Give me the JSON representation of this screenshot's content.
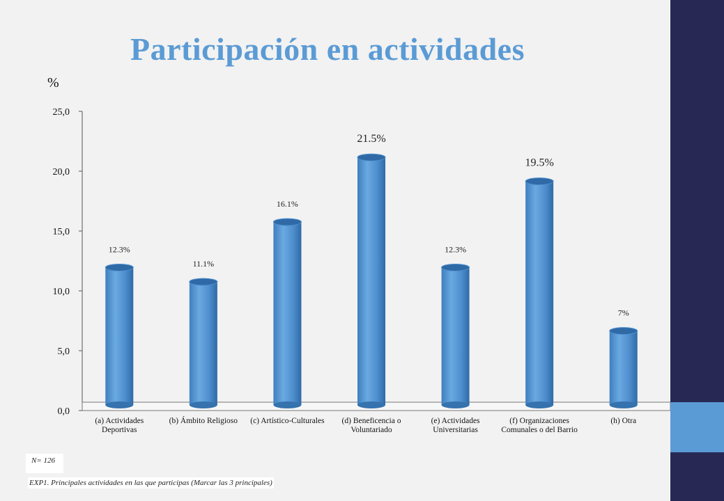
{
  "title": "Participación en actividades",
  "unit_label": "%",
  "sample_note": "N= 126",
  "question_note": "EXP1. Principales actividades en las que participas (Marcar las 3 principales)",
  "colors": {
    "title": "#5b9bd5",
    "bar": "#5b9bd5",
    "sidebar_dark": "#272954",
    "sidebar_light": "#5b9bd5"
  },
  "chart_data": {
    "type": "bar",
    "title": "Participación en actividades",
    "ylabel": "%",
    "xlabel": "",
    "ylim": [
      0,
      25
    ],
    "yticks": [
      "0,0",
      "5,0",
      "10,0",
      "15,0",
      "20,0",
      "25,0"
    ],
    "grid": false,
    "categories": [
      "(a) Actividades Deportivas",
      "(b) Ámbito Religioso",
      "(c)  Artístico-Culturales",
      "(d) Beneficencia o Voluntariado",
      "(e) Actividades Universitarias",
      "(f) Organizaciones Comunales o del Barrio",
      "(h) Otra"
    ],
    "values": [
      12.3,
      11.1,
      16.1,
      21.5,
      12.3,
      19.5,
      7
    ],
    "data_labels": [
      "12.3%",
      "11.1%",
      "16.1%",
      "21.5%",
      "12.3%",
      "19.5%",
      "7%"
    ]
  }
}
